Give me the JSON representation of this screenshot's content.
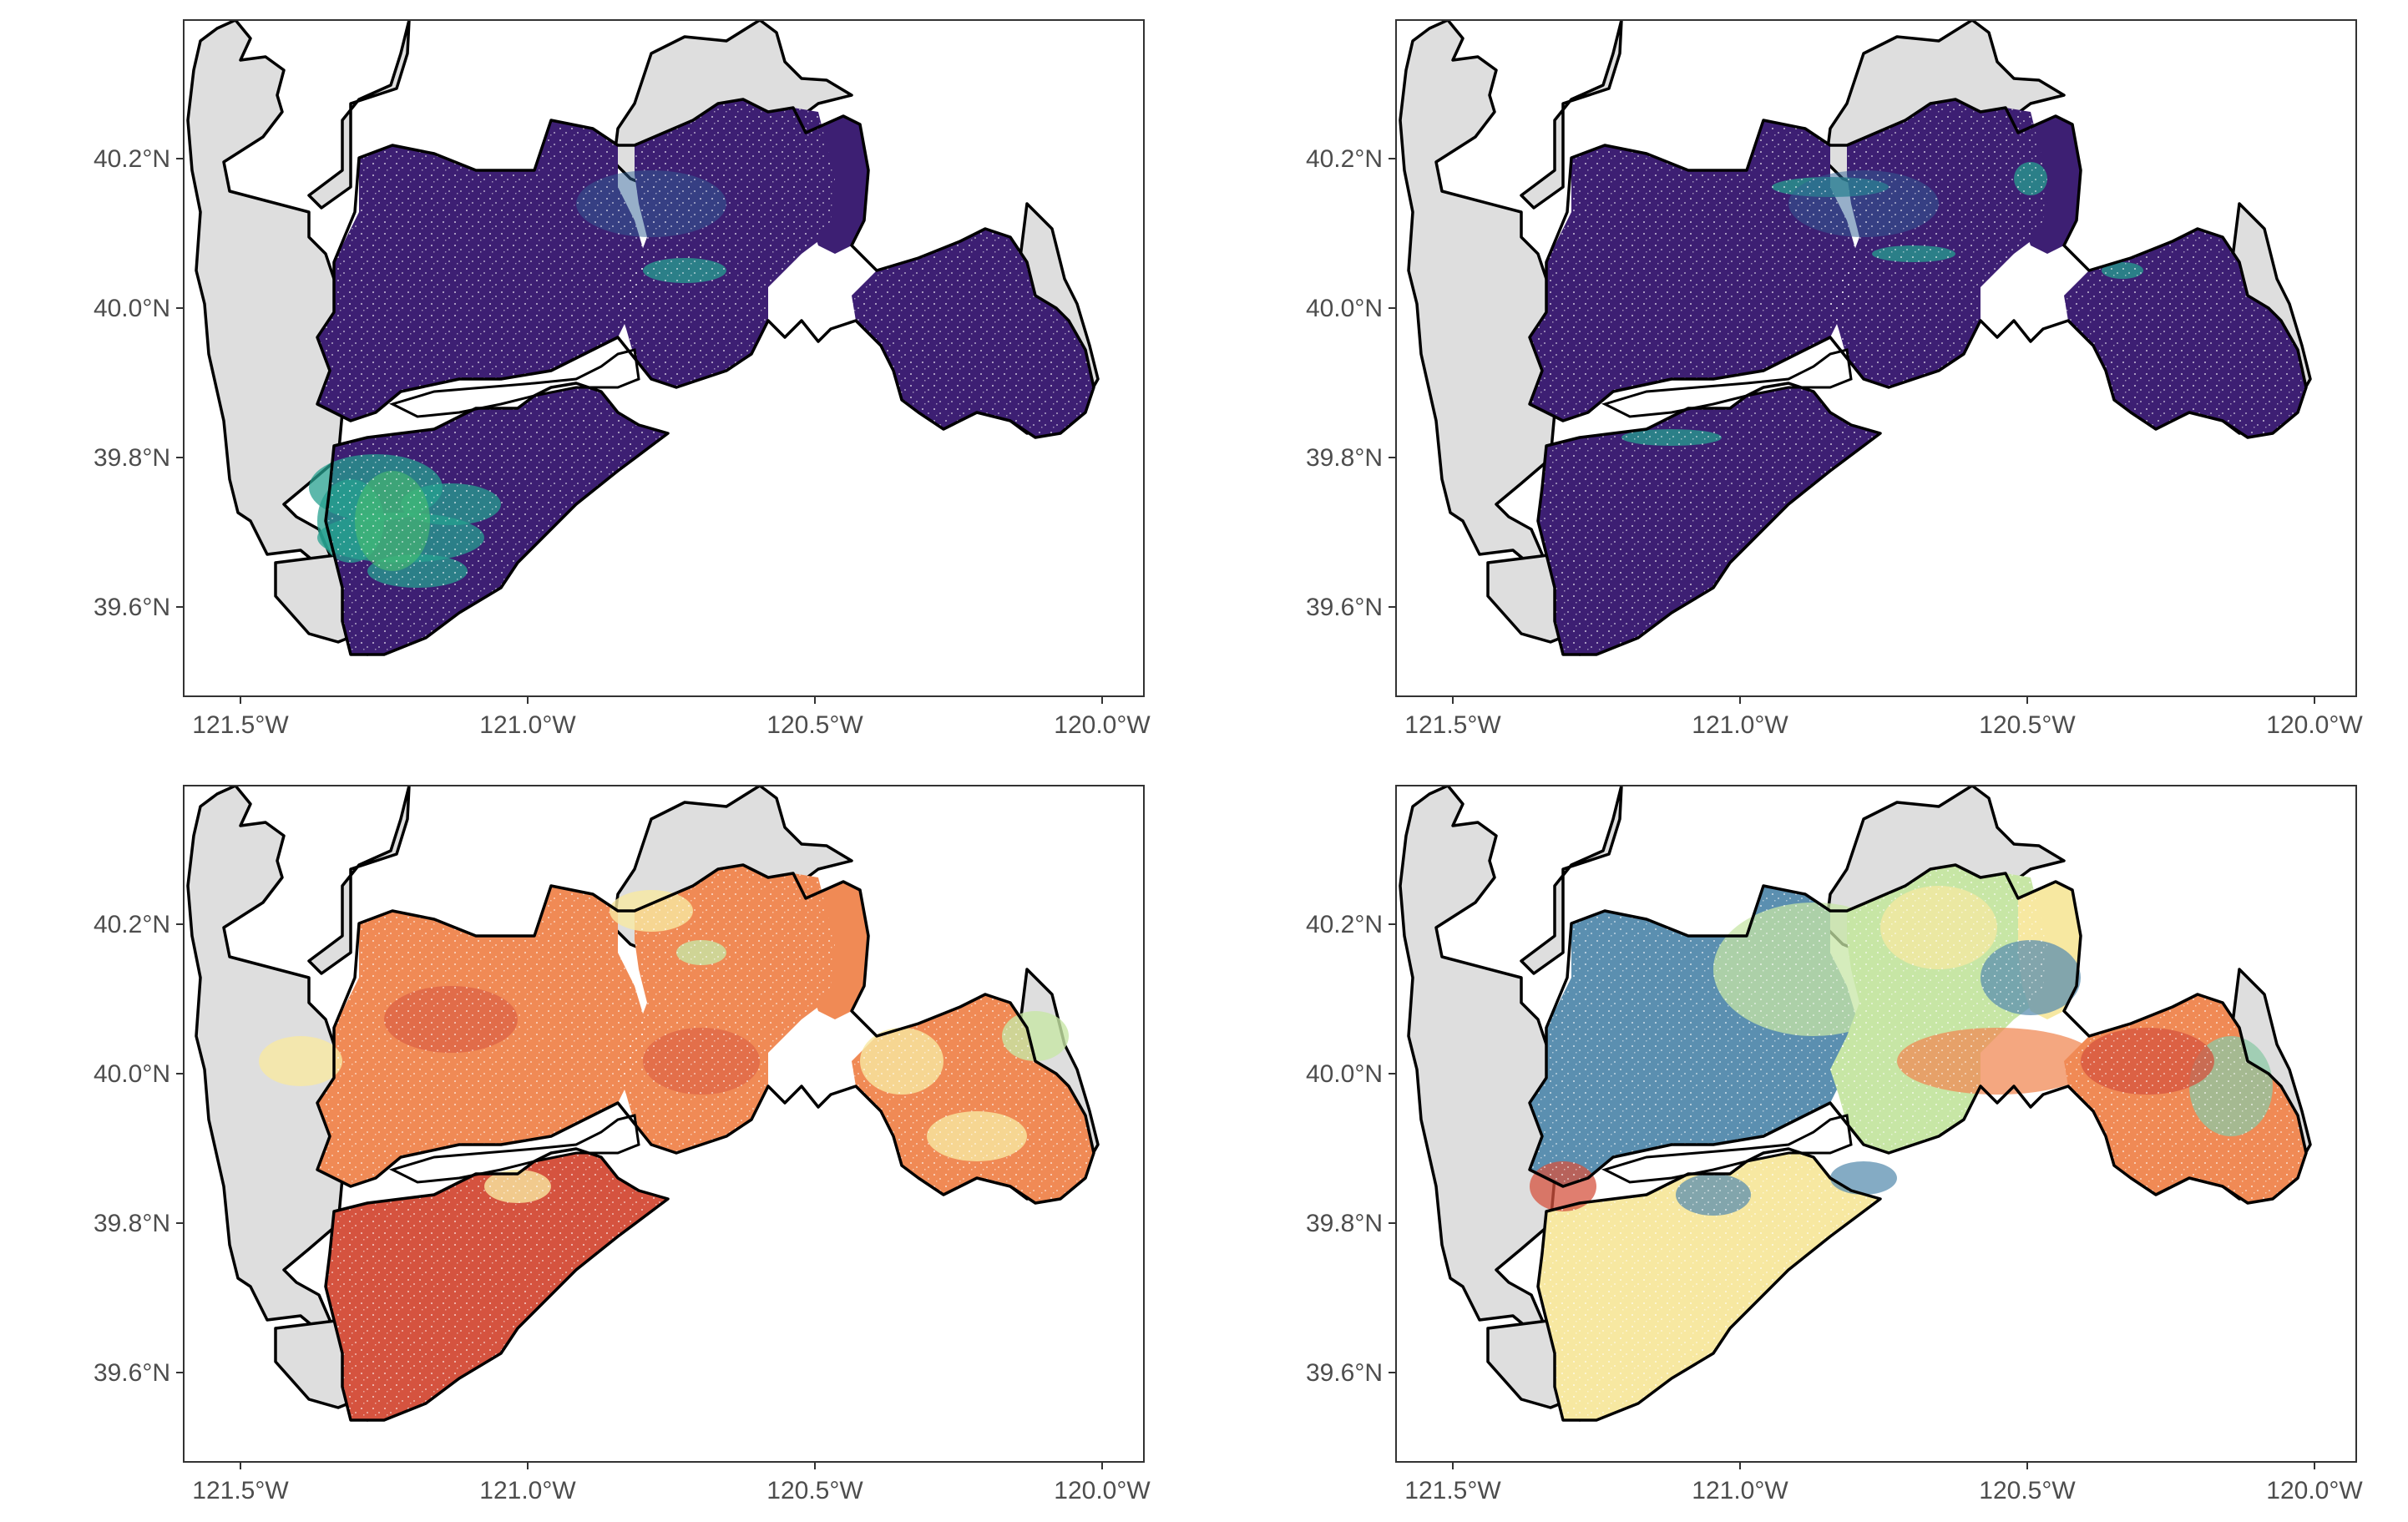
{
  "figure": {
    "panels": [
      {
        "id": "top-left",
        "palette": "viridis-low"
      },
      {
        "id": "top-right",
        "palette": "viridis-low"
      },
      {
        "id": "bottom-left",
        "palette": "spectral-warm"
      },
      {
        "id": "bottom-right",
        "palette": "spectral-mixed"
      }
    ],
    "x_ticks": [
      "121.5°W",
      "121.0°W",
      "120.5°W",
      "120.0°W"
    ],
    "y_ticks": [
      "40.2°N",
      "40.0°N",
      "39.8°N",
      "39.6°N"
    ],
    "colors": {
      "background": "#ffffff",
      "grey_land": "#dedede",
      "outline": "#000000",
      "viridis_dark": "#3d1f73",
      "viridis_mid": "#2f5f93",
      "viridis_teal": "#25a08f",
      "viridis_green": "#4dc36b",
      "spectral_red": "#d5533f",
      "spectral_orange": "#f08a55",
      "spectral_yellow": "#f7e8a1",
      "spectral_lightgreen": "#c7e6a5",
      "spectral_green": "#8cc8a5",
      "spectral_blue": "#5b8fb0"
    }
  }
}
